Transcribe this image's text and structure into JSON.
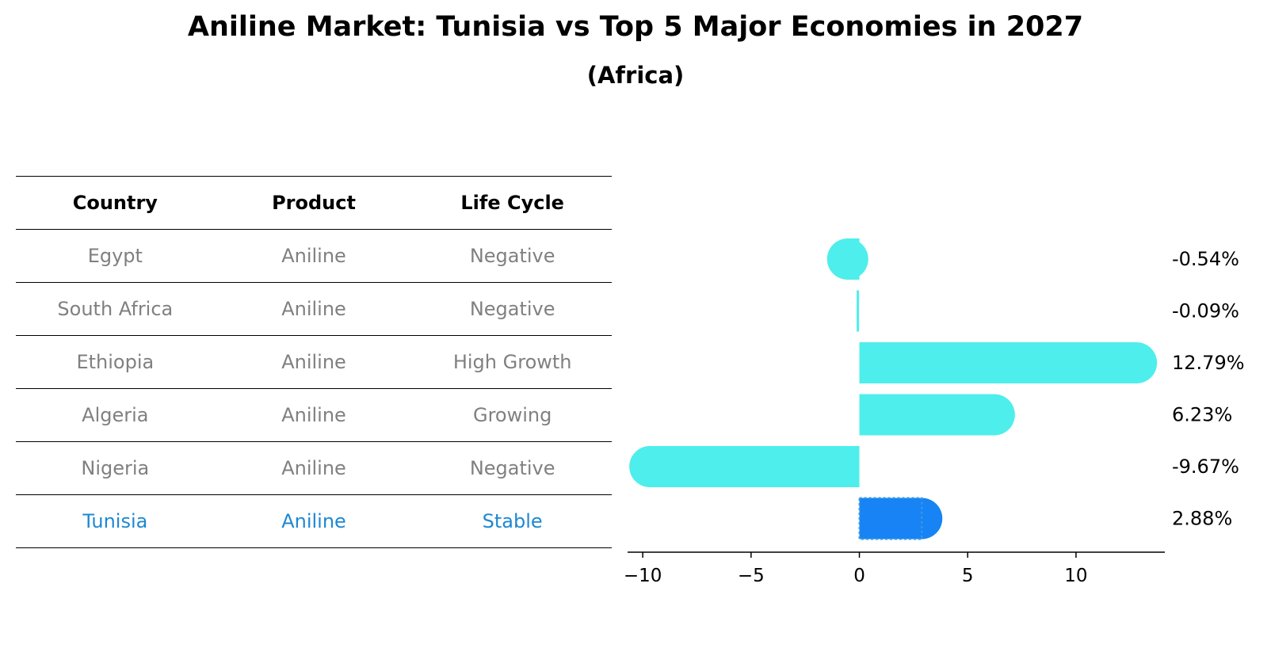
{
  "title": "Aniline Market: Tunisia vs Top 5 Major Economies in 2027",
  "subtitle": "(Africa)",
  "table": {
    "headers": [
      "Country",
      "Product",
      "Life Cycle"
    ],
    "rows": [
      [
        "Egypt",
        "Aniline",
        "Negative"
      ],
      [
        "South Africa",
        "Aniline",
        "Negative"
      ],
      [
        "Ethiopia",
        "Aniline",
        "High Growth"
      ],
      [
        "Algeria",
        "Aniline",
        "Growing"
      ],
      [
        "Nigeria",
        "Aniline",
        "Negative"
      ],
      [
        "Tunisia",
        "Aniline",
        "Stable"
      ]
    ],
    "highlight_row": 5
  },
  "chart_data": {
    "type": "bar",
    "orientation": "horizontal",
    "categories": [
      "Egypt",
      "South Africa",
      "Ethiopia",
      "Algeria",
      "Nigeria",
      "Tunisia"
    ],
    "values": [
      -0.54,
      -0.09,
      12.79,
      6.23,
      -9.67,
      2.88
    ],
    "value_labels": [
      "-0.54%",
      "-0.09%",
      "12.79%",
      "6.23%",
      "-9.67%",
      "2.88%"
    ],
    "xlim": [
      -10.7,
      14.1
    ],
    "xticks": [
      -10,
      -5,
      0,
      5,
      10
    ],
    "xtick_labels": [
      "−10",
      "−5",
      "0",
      "5",
      "10"
    ],
    "grid": false,
    "colors": {
      "default": "#4eeeec",
      "highlight": "#1783f4",
      "table_highlight_text": "#1e88d2",
      "table_text": "#808080"
    },
    "highlight_index": 5
  }
}
